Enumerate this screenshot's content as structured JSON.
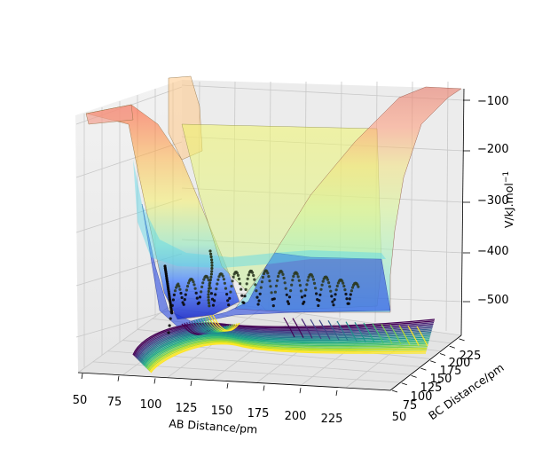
{
  "chart_data": {
    "type": "surface-3d",
    "xlabel": "AB Distance/pm",
    "ylabel": "BC Distance/pm",
    "zlabel": "V/kJ.mol",
    "zlabel_sup": "−1",
    "x_ticks": [
      "50",
      "75",
      "100",
      "125",
      "150",
      "175",
      "200",
      "225"
    ],
    "y_ticks": [
      "50",
      "75",
      "100",
      "125",
      "150",
      "175",
      "200",
      "225"
    ],
    "z_ticks": [
      "−100",
      "−200",
      "−300",
      "−400",
      "−500"
    ],
    "xlim": [
      50,
      245
    ],
    "ylim": [
      50,
      245
    ],
    "zlim": [
      -560,
      -80
    ],
    "surface_colormap": "jet",
    "contour_colormap": "viridis",
    "trajectory_color": "#000000",
    "grid": true
  }
}
